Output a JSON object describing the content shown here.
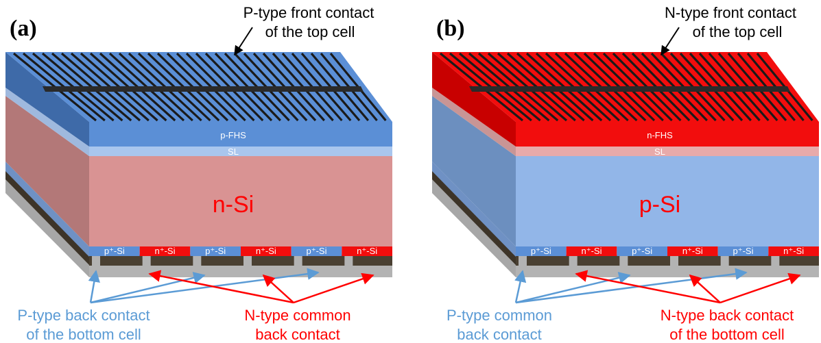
{
  "colors": {
    "blue": "#5b8fd6",
    "blue_dark": "#3f6fb3",
    "blue_light": "#92b6e8",
    "red": "#f20d0d",
    "red_dark": "#c80000",
    "pink": "#d99393",
    "pink_side": "#b77474",
    "sl_blue": "#a9c6ee",
    "sl_pink": "#e8aaaa",
    "dark": "#4a4032",
    "gray": "#b0b0b0",
    "label_blue": "#5b9bd5",
    "label_red": "#ff0000"
  },
  "panels": [
    {
      "label": "(a)",
      "front_contact": {
        "line1": "P-type front contact",
        "line2": "of the top cell"
      },
      "fhs_label": "p-FHS",
      "sl_label": "SL",
      "bulk_label": "n-Si",
      "segments": [
        {
          "text": "p⁺-Si",
          "type": "p"
        },
        {
          "text": "n⁺-Si",
          "type": "n"
        },
        {
          "text": "p⁺-Si",
          "type": "p"
        },
        {
          "text": "n⁺-Si",
          "type": "n"
        },
        {
          "text": "p⁺-Si",
          "type": "p"
        },
        {
          "text": "n⁺-Si",
          "type": "n"
        }
      ],
      "left_callout": {
        "line1": "P-type back contact",
        "line2": "of the bottom cell",
        "color": "blue"
      },
      "right_callout": {
        "line1": "N-type common",
        "line2": "back contact",
        "color": "red"
      }
    },
    {
      "label": "(b)",
      "front_contact": {
        "line1": "N-type front contact",
        "line2": "of the top cell"
      },
      "fhs_label": "n-FHS",
      "sl_label": "SL",
      "bulk_label": "p-Si",
      "segments": [
        {
          "text": "p⁺-Si",
          "type": "p"
        },
        {
          "text": "n⁺-Si",
          "type": "n"
        },
        {
          "text": "p⁺-Si",
          "type": "p"
        },
        {
          "text": "n⁺-Si",
          "type": "n"
        },
        {
          "text": "p⁺-Si",
          "type": "p"
        },
        {
          "text": "n⁺-Si",
          "type": "n"
        }
      ],
      "left_callout": {
        "line1": "P-type common",
        "line2": "back contact",
        "color": "blue"
      },
      "right_callout": {
        "line1": "N-type back contact",
        "line2": "of the bottom cell",
        "color": "red"
      }
    }
  ]
}
